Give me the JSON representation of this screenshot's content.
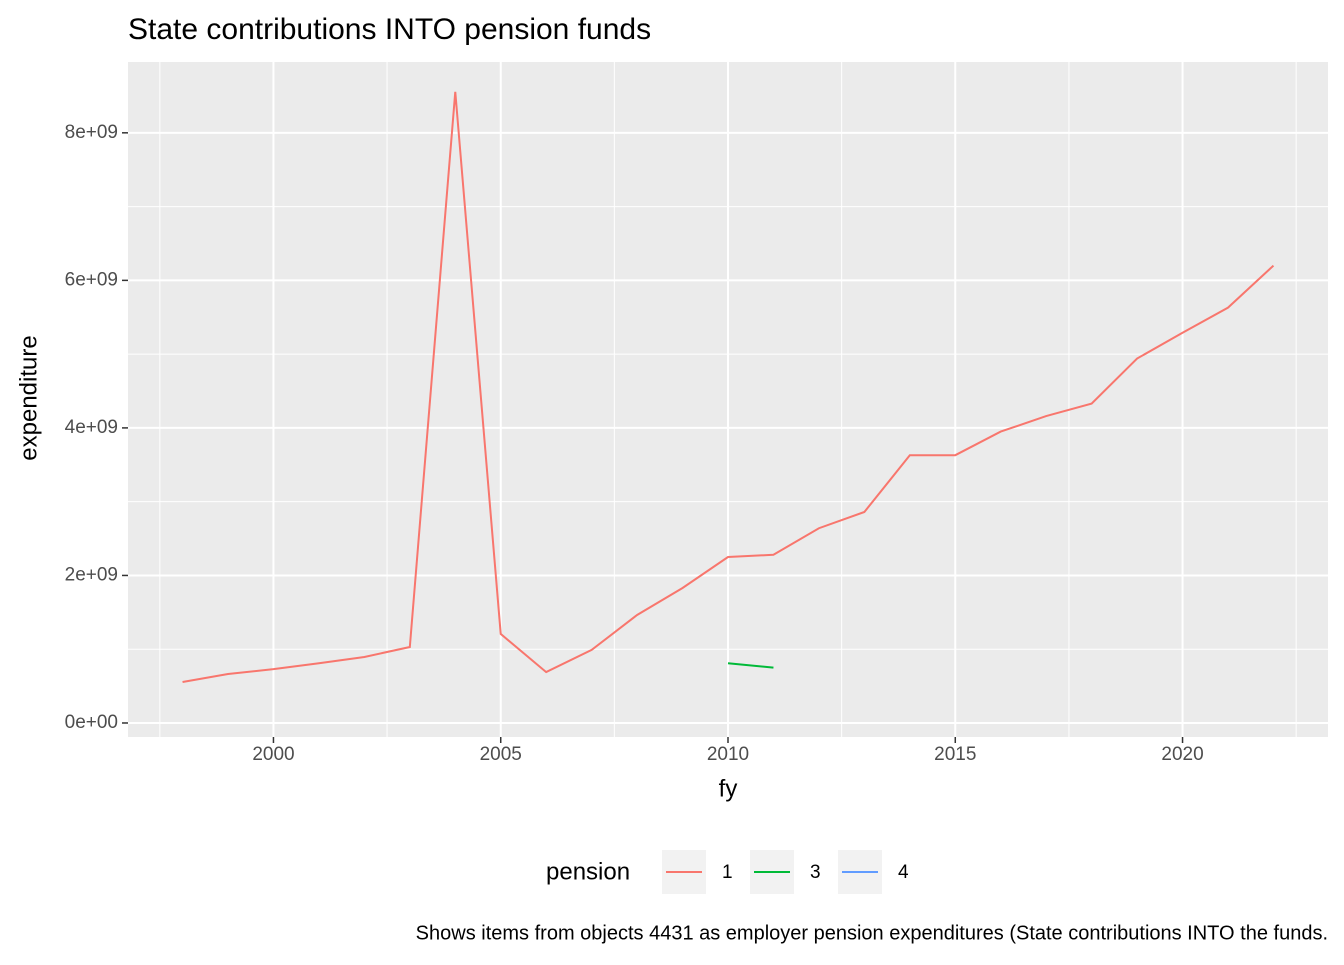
{
  "chart_data": {
    "type": "line",
    "title": "State contributions INTO pension funds",
    "x_label": "fy",
    "y_label": "expenditure",
    "legend_title": "pension",
    "legend_position": "bottom",
    "caption": "Shows items from objects 4431 as employer pension expenditures (State contributions INTO the funds.",
    "grid": true,
    "xlim": [
      1996.8,
      2023.2
    ],
    "xticks": [
      2000,
      2005,
      2010,
      2015,
      2020
    ],
    "ylim": [
      -190000000,
      8960000000
    ],
    "yticks": [
      {
        "value": 0,
        "label": "0e+00"
      },
      {
        "value": 2000000000,
        "label": "2e+09"
      },
      {
        "value": 4000000000,
        "label": "4e+09"
      },
      {
        "value": 6000000000,
        "label": "6e+09"
      },
      {
        "value": 8000000000,
        "label": "8e+09"
      }
    ],
    "series": [
      {
        "name": "1",
        "color": "#F8766D",
        "x": [
          1998,
          1999,
          2000,
          2001,
          2002,
          2003,
          2004,
          2005,
          2006,
          2007,
          2008,
          2009,
          2010,
          2011,
          2012,
          2013,
          2014,
          2015,
          2016,
          2017,
          2018,
          2019,
          2020,
          2021,
          2022
        ],
        "values": [
          556000000,
          664000000,
          730000000,
          810000000,
          895000000,
          1030000000,
          8556000000,
          1207000000,
          690000000,
          990000000,
          1464000000,
          1830000000,
          2250000000,
          2280000000,
          2640000000,
          2860000000,
          3630000000,
          3630000000,
          3950000000,
          4160000000,
          4330000000,
          4940000000,
          5290000000,
          5630000000,
          6200000000
        ]
      },
      {
        "name": "3",
        "color": "#00BA38",
        "x": [
          2010,
          2011
        ],
        "values": [
          810000000,
          750000000
        ]
      },
      {
        "name": "4",
        "color": "#619CFF",
        "x": [
          2010
        ],
        "values": [
          null
        ]
      }
    ]
  }
}
